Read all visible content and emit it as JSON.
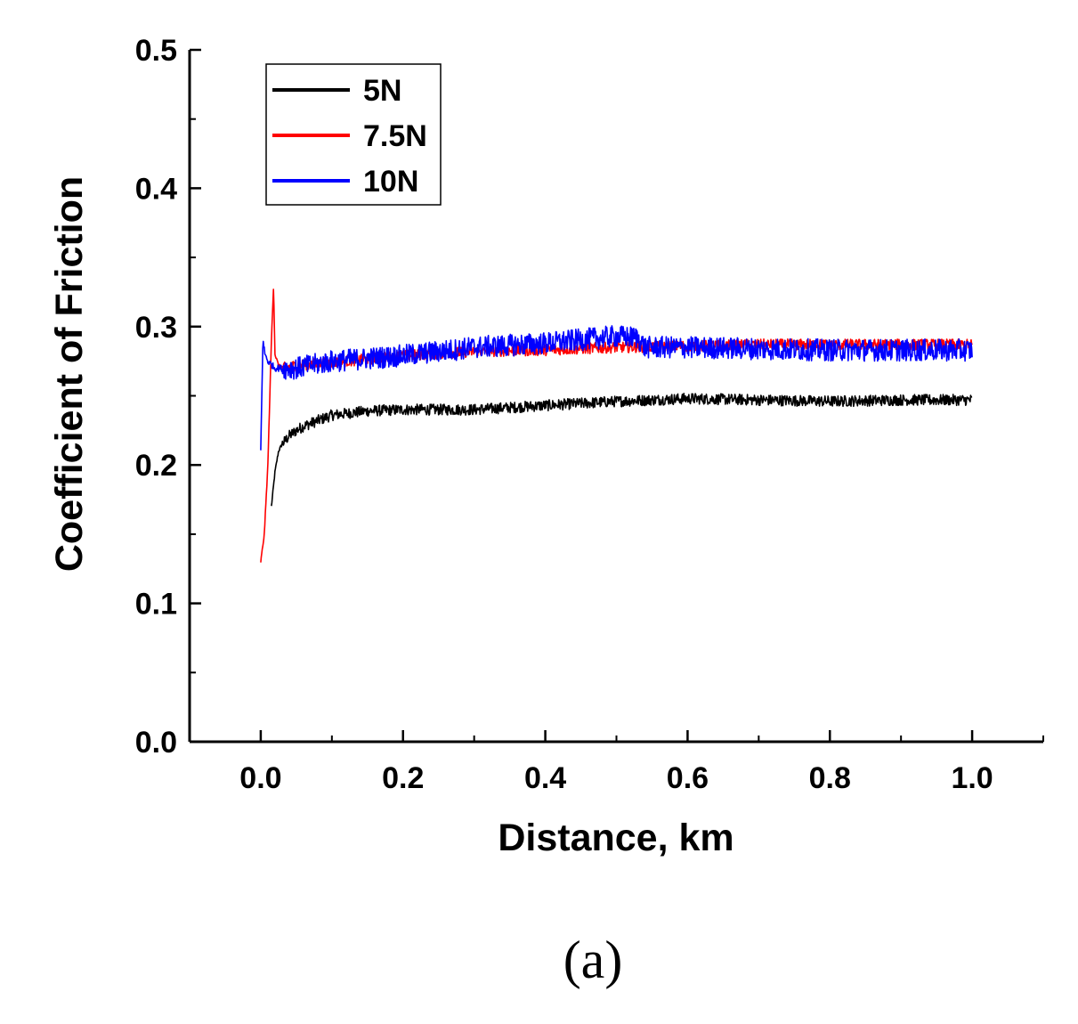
{
  "chart_data": {
    "type": "line",
    "title": "",
    "xlabel": "Distance, km",
    "ylabel": "Coefficient of Friction",
    "xlim": [
      -0.1,
      1.1
    ],
    "ylim": [
      0.0,
      0.5
    ],
    "xticks": [
      "0.0",
      "0.2",
      "0.4",
      "0.6",
      "0.8",
      "1.0"
    ],
    "xtick_values": [
      0.0,
      0.2,
      0.4,
      0.6,
      0.8,
      1.0
    ],
    "yticks": [
      "0.0",
      "0.1",
      "0.2",
      "0.3",
      "0.4",
      "0.5"
    ],
    "ytick_values": [
      0.0,
      0.1,
      0.2,
      0.3,
      0.4,
      0.5
    ],
    "grid": false,
    "legend_position": "top-left",
    "series": [
      {
        "name": "5N",
        "color": "#000000",
        "noise": 0.004,
        "x": [
          0.015,
          0.02,
          0.025,
          0.03,
          0.04,
          0.05,
          0.06,
          0.08,
          0.1,
          0.15,
          0.2,
          0.3,
          0.4,
          0.5,
          0.6,
          0.7,
          0.8,
          0.9,
          1.0
        ],
        "y": [
          0.17,
          0.195,
          0.21,
          0.215,
          0.221,
          0.225,
          0.228,
          0.232,
          0.236,
          0.239,
          0.24,
          0.24,
          0.243,
          0.246,
          0.248,
          0.247,
          0.246,
          0.247,
          0.247
        ]
      },
      {
        "name": "7.5N",
        "color": "#ff0000",
        "noise": 0.004,
        "x": [
          0.0,
          0.005,
          0.01,
          0.015,
          0.018,
          0.02,
          0.025,
          0.03,
          0.05,
          0.1,
          0.2,
          0.3,
          0.4,
          0.5,
          0.6,
          0.7,
          0.8,
          0.9,
          1.0
        ],
        "y": [
          0.13,
          0.15,
          0.2,
          0.29,
          0.33,
          0.28,
          0.272,
          0.27,
          0.272,
          0.274,
          0.279,
          0.282,
          0.283,
          0.285,
          0.286,
          0.287,
          0.287,
          0.287,
          0.287
        ]
      },
      {
        "name": "10N",
        "color": "#0000ff",
        "noise": 0.008,
        "x": [
          0.0,
          0.003,
          0.006,
          0.01,
          0.02,
          0.05,
          0.1,
          0.2,
          0.3,
          0.4,
          0.5,
          0.53,
          0.54,
          0.6,
          0.7,
          0.8,
          0.9,
          1.0
        ],
        "y": [
          0.21,
          0.29,
          0.28,
          0.275,
          0.27,
          0.27,
          0.275,
          0.279,
          0.285,
          0.288,
          0.293,
          0.292,
          0.285,
          0.285,
          0.284,
          0.283,
          0.283,
          0.283
        ]
      }
    ]
  },
  "caption": "(a)"
}
